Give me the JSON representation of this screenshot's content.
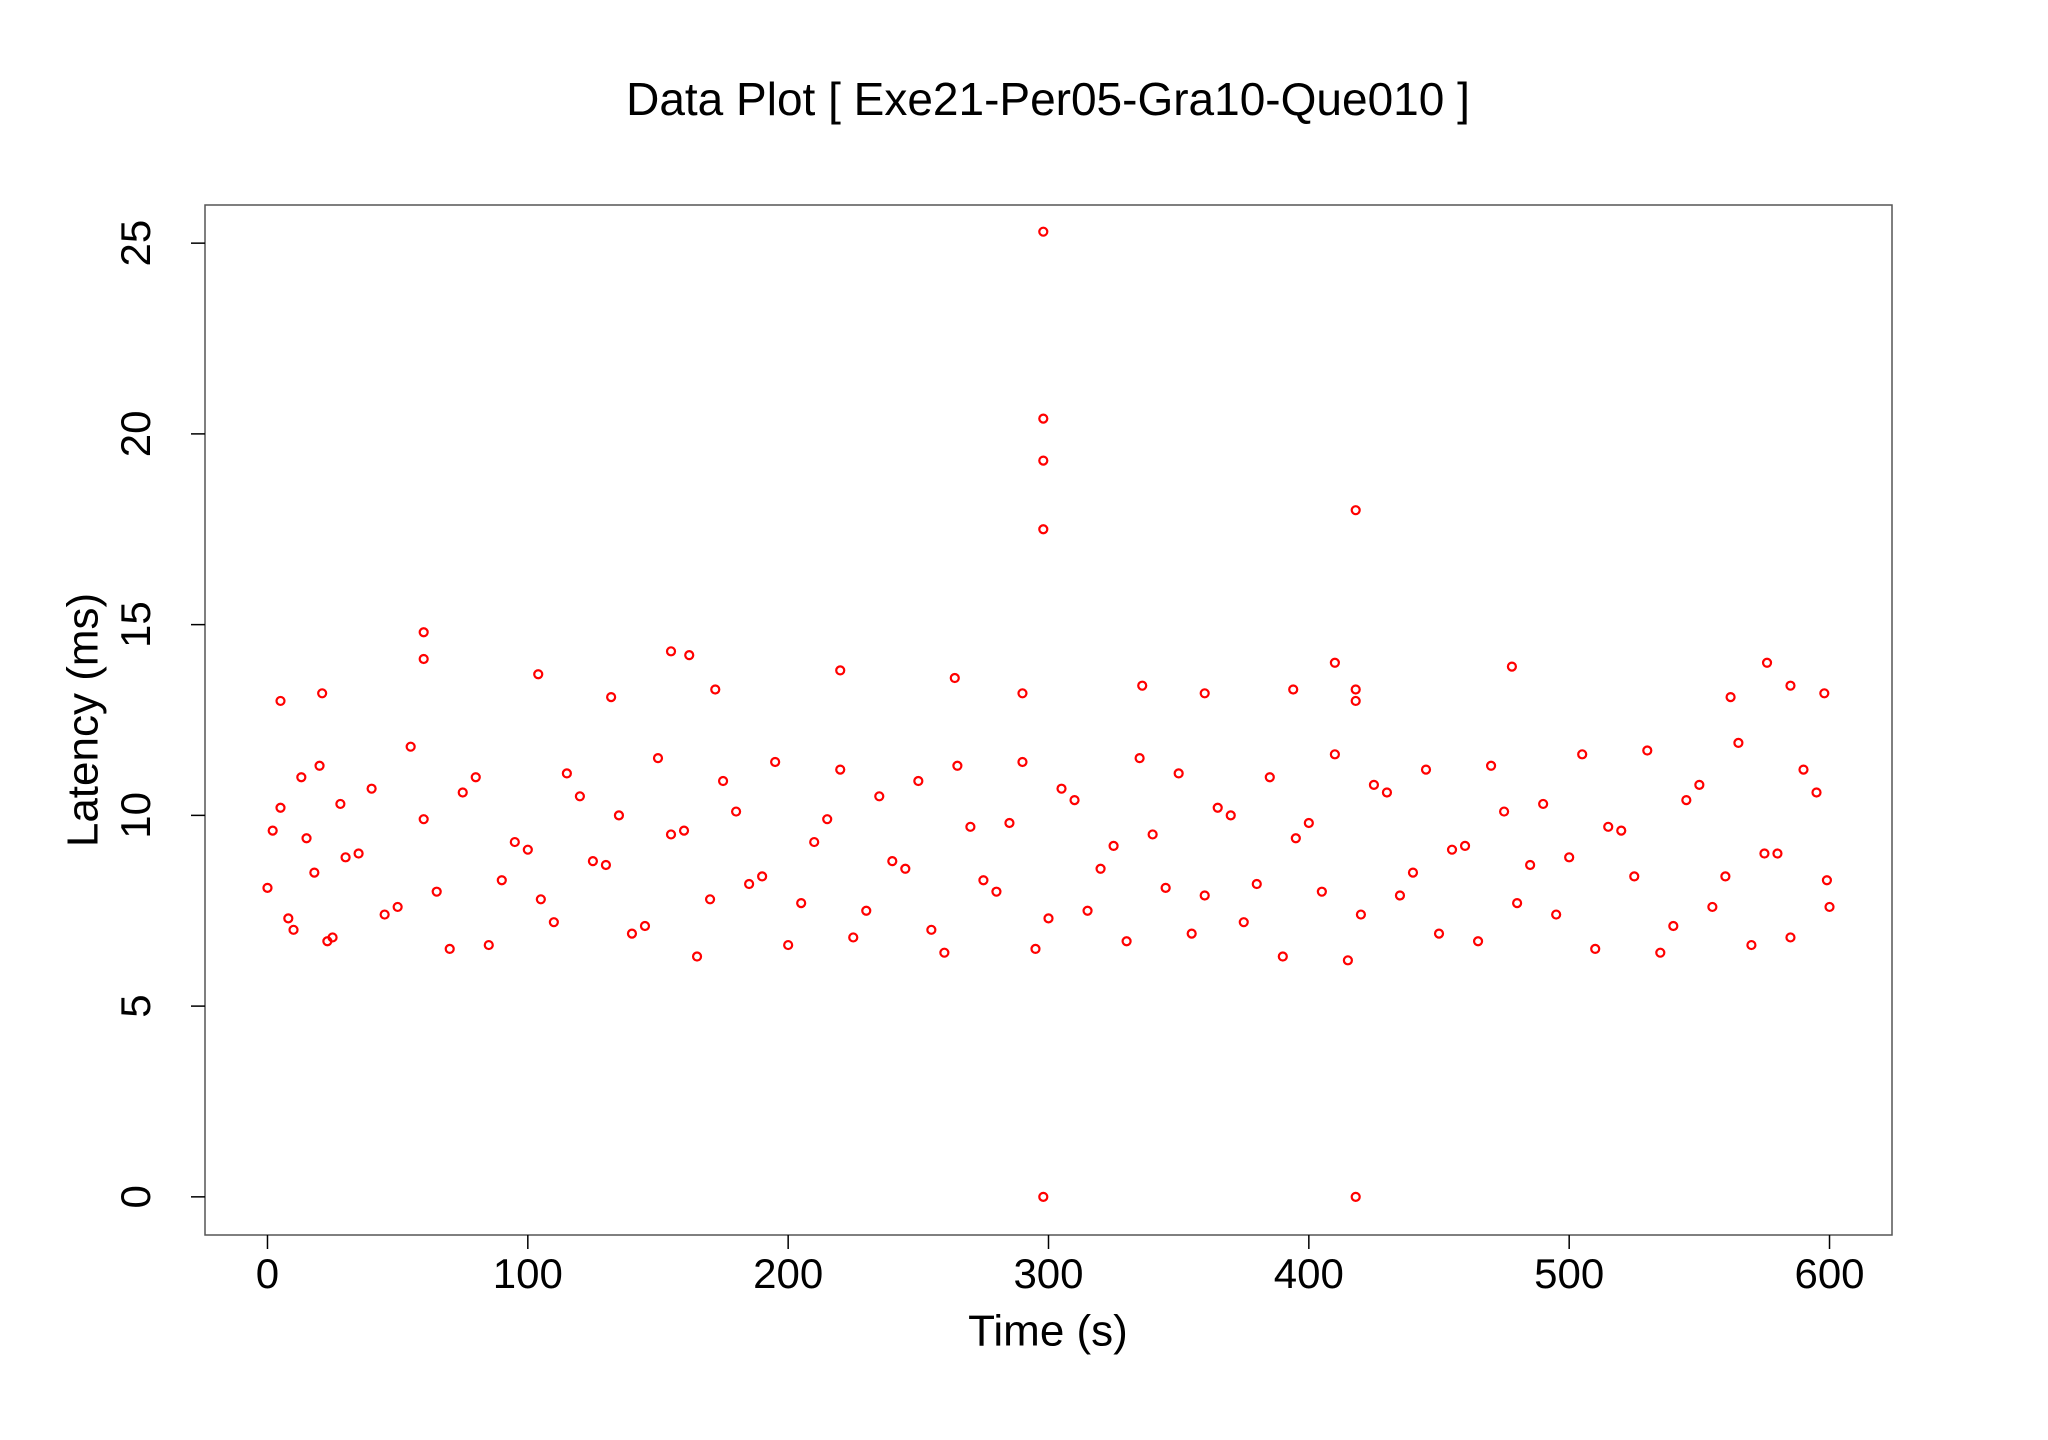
{
  "chart_data": {
    "type": "scatter",
    "title": "Data Plot [ Exe21-Per05-Gra10-Que010 ]",
    "x_label": "Time (s)",
    "y_label": "Latency (ms)",
    "color": "#ff0000",
    "xlim": [
      -24,
      624
    ],
    "xticks": [
      0,
      100,
      200,
      300,
      400,
      500,
      600
    ],
    "ylim": [
      -1,
      26
    ],
    "yticks": [
      0,
      5,
      10,
      15,
      20,
      25
    ],
    "x": [
      0,
      5,
      10,
      15,
      20,
      25,
      30,
      40,
      50,
      60,
      70,
      80,
      90,
      100,
      110,
      120,
      130,
      140,
      150,
      160,
      170,
      180,
      190,
      200,
      210,
      220,
      230,
      240,
      250,
      260,
      270,
      280,
      290,
      300,
      310,
      320,
      330,
      340,
      350,
      360,
      370,
      380,
      390,
      400,
      410,
      420,
      430,
      440,
      450,
      460,
      470,
      480,
      490,
      500,
      510,
      520,
      530,
      540,
      550,
      560,
      570,
      580,
      590,
      600,
      2,
      8,
      13,
      18,
      23,
      28,
      35,
      45,
      55,
      65,
      75,
      85,
      95,
      105,
      115,
      125,
      135,
      145,
      155,
      165,
      175,
      185,
      195,
      205,
      215,
      225,
      235,
      245,
      255,
      265,
      275,
      285,
      295,
      305,
      315,
      325,
      335,
      345,
      355,
      365,
      375,
      385,
      395,
      405,
      415,
      425,
      435,
      445,
      455,
      465,
      475,
      485,
      495,
      505,
      515,
      525,
      535,
      545,
      555,
      565,
      575,
      585,
      595,
      599,
      298,
      298,
      298,
      298,
      298,
      418,
      418,
      60,
      60,
      155,
      162,
      410,
      576,
      478,
      220,
      104,
      264,
      585,
      336,
      172,
      21,
      290,
      360,
      394,
      598,
      562,
      418,
      418,
      5,
      132
    ],
    "values": [
      8.1,
      10.2,
      7.0,
      9.4,
      11.3,
      6.8,
      8.9,
      10.7,
      7.6,
      9.9,
      6.5,
      11.0,
      8.3,
      9.1,
      7.2,
      10.5,
      8.7,
      6.9,
      11.5,
      9.6,
      7.8,
      10.1,
      8.4,
      6.6,
      9.3,
      11.2,
      7.5,
      8.8,
      10.9,
      6.4,
      9.7,
      8.0,
      11.4,
      7.3,
      10.4,
      8.6,
      6.7,
      9.5,
      11.1,
      7.9,
      10.0,
      8.2,
      6.3,
      9.8,
      11.6,
      7.4,
      10.6,
      8.5,
      6.9,
      9.2,
      11.3,
      7.7,
      10.3,
      8.9,
      6.5,
      9.6,
      11.7,
      7.1,
      10.8,
      8.4,
      6.6,
      9.0,
      11.2,
      7.6,
      9.6,
      7.3,
      11.0,
      8.5,
      6.7,
      10.3,
      9.0,
      7.4,
      11.8,
      8.0,
      10.6,
      6.6,
      9.3,
      7.8,
      11.1,
      8.8,
      10.0,
      7.1,
      9.5,
      6.3,
      10.9,
      8.2,
      11.4,
      7.7,
      9.9,
      6.8,
      10.5,
      8.6,
      7.0,
      11.3,
      8.3,
      9.8,
      6.5,
      10.7,
      7.5,
      9.2,
      11.5,
      8.1,
      6.9,
      10.2,
      7.2,
      11.0,
      9.4,
      8.0,
      6.2,
      10.8,
      7.9,
      11.2,
      9.1,
      6.7,
      10.1,
      8.7,
      7.4,
      11.6,
      9.7,
      8.4,
      6.4,
      10.4,
      7.6,
      11.9,
      9.0,
      6.8,
      10.6,
      8.3,
      25.3,
      20.4,
      19.3,
      17.5,
      0,
      0,
      18.0,
      14.8,
      14.1,
      14.3,
      14.2,
      14.0,
      14.0,
      13.9,
      13.8,
      13.7,
      13.6,
      13.4,
      13.4,
      13.3,
      13.2,
      13.2,
      13.2,
      13.3,
      13.2,
      13.1,
      13.3,
      13.0,
      13.0,
      13.1
    ]
  }
}
